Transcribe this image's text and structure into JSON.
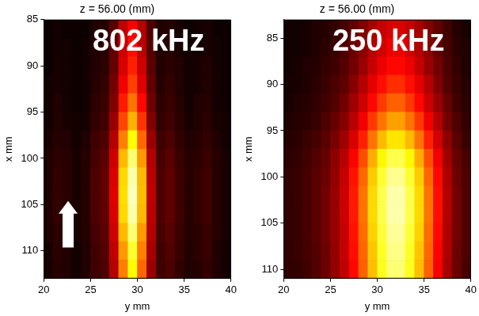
{
  "chart_data": [
    {
      "type": "heatmap",
      "title": "z = 56.00 (mm)",
      "annotation": "802 kHz",
      "x_label": "y mm",
      "y_label": "x mm",
      "xlim": [
        20,
        40
      ],
      "xticks": [
        20,
        25,
        30,
        35,
        40
      ],
      "ylim": [
        113,
        85
      ],
      "yticks": [
        85,
        90,
        95,
        100,
        105,
        110
      ],
      "clim": [
        0,
        1
      ],
      "cells": {
        "x": [
          20.5,
          21.5,
          22.5,
          23.5,
          24.5,
          25.5,
          26.5,
          27.5,
          28.5,
          29.5,
          30.5,
          31.5,
          32.5,
          33.5,
          34.5,
          35.5,
          36.5,
          37.5,
          38.5,
          39.5
        ],
        "y": [
          86,
          88,
          90,
          92,
          94,
          96,
          98,
          100,
          102,
          104,
          106,
          108,
          110,
          112
        ],
        "values": [
          [
            0.02,
            0.03,
            0.02,
            0.02,
            0.02,
            0.05,
            0.06,
            0.14,
            0.3,
            0.4,
            0.28,
            0.12,
            0.05,
            0.06,
            0.04,
            0.02,
            0.03,
            0.04,
            0.02,
            0.02
          ],
          [
            0.02,
            0.03,
            0.03,
            0.02,
            0.03,
            0.05,
            0.06,
            0.15,
            0.32,
            0.42,
            0.29,
            0.13,
            0.05,
            0.06,
            0.04,
            0.03,
            0.03,
            0.04,
            0.03,
            0.02
          ],
          [
            0.02,
            0.04,
            0.03,
            0.02,
            0.03,
            0.05,
            0.07,
            0.16,
            0.34,
            0.45,
            0.32,
            0.14,
            0.05,
            0.07,
            0.05,
            0.03,
            0.04,
            0.05,
            0.03,
            0.02
          ],
          [
            0.03,
            0.04,
            0.03,
            0.02,
            0.03,
            0.06,
            0.08,
            0.18,
            0.38,
            0.5,
            0.35,
            0.15,
            0.06,
            0.08,
            0.05,
            0.03,
            0.04,
            0.05,
            0.03,
            0.02
          ],
          [
            0.03,
            0.05,
            0.03,
            0.02,
            0.03,
            0.07,
            0.09,
            0.2,
            0.44,
            0.58,
            0.41,
            0.17,
            0.07,
            0.09,
            0.06,
            0.03,
            0.05,
            0.06,
            0.03,
            0.02
          ],
          [
            0.03,
            0.05,
            0.04,
            0.03,
            0.04,
            0.08,
            0.1,
            0.24,
            0.51,
            0.68,
            0.48,
            0.2,
            0.08,
            0.1,
            0.07,
            0.04,
            0.05,
            0.07,
            0.04,
            0.03
          ],
          [
            0.04,
            0.06,
            0.05,
            0.03,
            0.05,
            0.1,
            0.12,
            0.28,
            0.6,
            0.8,
            0.56,
            0.24,
            0.1,
            0.12,
            0.08,
            0.05,
            0.06,
            0.08,
            0.05,
            0.03
          ],
          [
            0.05,
            0.07,
            0.06,
            0.04,
            0.06,
            0.11,
            0.14,
            0.32,
            0.69,
            0.92,
            0.64,
            0.28,
            0.11,
            0.14,
            0.09,
            0.06,
            0.07,
            0.09,
            0.06,
            0.04
          ],
          [
            0.05,
            0.08,
            0.06,
            0.04,
            0.06,
            0.12,
            0.15,
            0.34,
            0.74,
            0.98,
            0.69,
            0.29,
            0.12,
            0.15,
            0.1,
            0.06,
            0.08,
            0.1,
            0.06,
            0.04
          ],
          [
            0.05,
            0.08,
            0.06,
            0.04,
            0.06,
            0.12,
            0.15,
            0.35,
            0.75,
            1.0,
            0.7,
            0.3,
            0.12,
            0.15,
            0.1,
            0.06,
            0.08,
            0.1,
            0.06,
            0.04
          ],
          [
            0.05,
            0.08,
            0.06,
            0.04,
            0.06,
            0.12,
            0.15,
            0.34,
            0.74,
            0.98,
            0.69,
            0.29,
            0.12,
            0.15,
            0.1,
            0.06,
            0.08,
            0.1,
            0.06,
            0.04
          ],
          [
            0.05,
            0.07,
            0.06,
            0.04,
            0.06,
            0.11,
            0.14,
            0.32,
            0.69,
            0.92,
            0.64,
            0.28,
            0.11,
            0.14,
            0.09,
            0.06,
            0.07,
            0.09,
            0.06,
            0.04
          ],
          [
            0.04,
            0.07,
            0.05,
            0.03,
            0.05,
            0.1,
            0.13,
            0.3,
            0.64,
            0.85,
            0.6,
            0.26,
            0.1,
            0.13,
            0.09,
            0.05,
            0.07,
            0.09,
            0.05,
            0.03
          ],
          [
            0.04,
            0.06,
            0.05,
            0.03,
            0.05,
            0.1,
            0.12,
            0.28,
            0.6,
            0.8,
            0.56,
            0.24,
            0.1,
            0.12,
            0.08,
            0.05,
            0.06,
            0.08,
            0.05,
            0.03
          ]
        ]
      }
    },
    {
      "type": "heatmap",
      "title": "z = 56.00 (mm)",
      "annotation": "250 kHz",
      "x_label": "y mm",
      "y_label": "x mm",
      "xlim": [
        20,
        40
      ],
      "xticks": [
        20,
        25,
        30,
        35,
        40
      ],
      "ylim": [
        111,
        83
      ],
      "yticks": [
        85,
        90,
        95,
        100,
        105,
        110
      ],
      "clim": [
        0,
        1
      ],
      "cells": {
        "x": [
          20.5,
          21.5,
          22.5,
          23.5,
          24.5,
          25.5,
          26.5,
          27.5,
          28.5,
          29.5,
          30.5,
          31.5,
          32.5,
          33.5,
          34.5,
          35.5,
          36.5,
          37.5,
          38.5,
          39.5
        ],
        "y": [
          84,
          86,
          88,
          90,
          92,
          94,
          96,
          98,
          100,
          102,
          104,
          106,
          108,
          110
        ],
        "values": [
          [
            0.03,
            0.03,
            0.04,
            0.05,
            0.06,
            0.08,
            0.11,
            0.15,
            0.2,
            0.26,
            0.31,
            0.34,
            0.34,
            0.31,
            0.26,
            0.2,
            0.15,
            0.1,
            0.06,
            0.04
          ],
          [
            0.03,
            0.03,
            0.04,
            0.05,
            0.07,
            0.09,
            0.12,
            0.17,
            0.22,
            0.28,
            0.33,
            0.37,
            0.37,
            0.33,
            0.28,
            0.22,
            0.16,
            0.11,
            0.07,
            0.05
          ],
          [
            0.03,
            0.04,
            0.05,
            0.06,
            0.08,
            0.1,
            0.13,
            0.18,
            0.24,
            0.31,
            0.37,
            0.41,
            0.41,
            0.37,
            0.31,
            0.24,
            0.18,
            0.12,
            0.08,
            0.05
          ],
          [
            0.04,
            0.04,
            0.05,
            0.07,
            0.09,
            0.12,
            0.15,
            0.21,
            0.28,
            0.36,
            0.42,
            0.47,
            0.47,
            0.42,
            0.36,
            0.28,
            0.2,
            0.13,
            0.09,
            0.06
          ],
          [
            0.04,
            0.05,
            0.06,
            0.08,
            0.1,
            0.13,
            0.18,
            0.25,
            0.32,
            0.41,
            0.49,
            0.55,
            0.55,
            0.49,
            0.41,
            0.32,
            0.24,
            0.16,
            0.1,
            0.07
          ],
          [
            0.05,
            0.06,
            0.07,
            0.09,
            0.12,
            0.16,
            0.21,
            0.29,
            0.38,
            0.49,
            0.58,
            0.65,
            0.65,
            0.58,
            0.49,
            0.38,
            0.28,
            0.18,
            0.12,
            0.08
          ],
          [
            0.06,
            0.07,
            0.09,
            0.11,
            0.14,
            0.19,
            0.25,
            0.34,
            0.45,
            0.58,
            0.69,
            0.76,
            0.76,
            0.69,
            0.58,
            0.45,
            0.33,
            0.22,
            0.14,
            0.09
          ],
          [
            0.07,
            0.08,
            0.1,
            0.13,
            0.16,
            0.22,
            0.29,
            0.4,
            0.52,
            0.67,
            0.79,
            0.88,
            0.88,
            0.79,
            0.67,
            0.52,
            0.38,
            0.25,
            0.16,
            0.11
          ],
          [
            0.08,
            0.09,
            0.11,
            0.14,
            0.17,
            0.23,
            0.31,
            0.43,
            0.56,
            0.72,
            0.85,
            0.95,
            0.95,
            0.85,
            0.72,
            0.56,
            0.41,
            0.27,
            0.17,
            0.12
          ],
          [
            0.08,
            0.09,
            0.11,
            0.14,
            0.18,
            0.24,
            0.32,
            0.44,
            0.58,
            0.74,
            0.88,
            0.98,
            0.98,
            0.88,
            0.74,
            0.58,
            0.42,
            0.28,
            0.18,
            0.12
          ],
          [
            0.08,
            0.09,
            0.11,
            0.14,
            0.18,
            0.24,
            0.32,
            0.44,
            0.58,
            0.74,
            0.88,
            0.98,
            0.98,
            0.88,
            0.74,
            0.58,
            0.42,
            0.28,
            0.18,
            0.12
          ],
          [
            0.08,
            0.09,
            0.11,
            0.14,
            0.18,
            0.24,
            0.31,
            0.43,
            0.57,
            0.73,
            0.86,
            0.96,
            0.96,
            0.86,
            0.73,
            0.57,
            0.41,
            0.27,
            0.18,
            0.12
          ],
          [
            0.08,
            0.09,
            0.11,
            0.13,
            0.17,
            0.23,
            0.31,
            0.42,
            0.56,
            0.71,
            0.84,
            0.94,
            0.94,
            0.84,
            0.71,
            0.56,
            0.4,
            0.27,
            0.17,
            0.12
          ],
          [
            0.08,
            0.08,
            0.1,
            0.13,
            0.17,
            0.23,
            0.3,
            0.41,
            0.55,
            0.7,
            0.83,
            0.92,
            0.92,
            0.83,
            0.7,
            0.55,
            0.39,
            0.26,
            0.17,
            0.11
          ]
        ]
      }
    }
  ]
}
